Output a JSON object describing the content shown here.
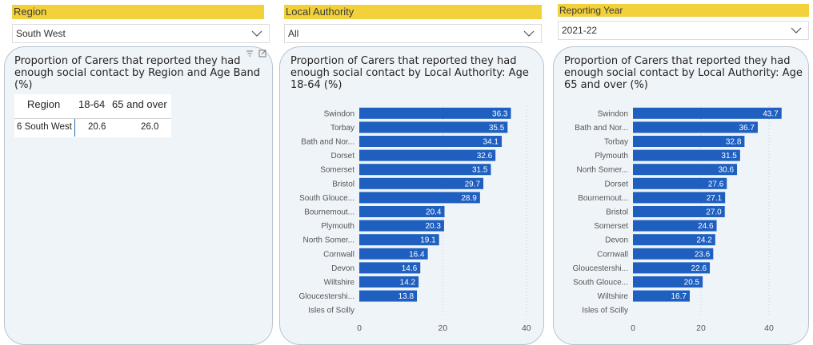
{
  "filters": {
    "region": {
      "title": "Region",
      "value": "South West"
    },
    "local_authority": {
      "title": "Local Authority",
      "value": "All"
    },
    "reporting_year": {
      "title": "Reporting Year",
      "value": "2021-22"
    }
  },
  "region_card": {
    "title_line1": "Proportion of Carers that reported they had",
    "title_line2": "enough social contact by Region and Age Band",
    "title_line3": "(%)",
    "table": {
      "headers": [
        "Region",
        "18-64",
        "65 and over"
      ],
      "rows": [
        [
          "6 South West",
          "20.6",
          "26.0"
        ]
      ]
    }
  },
  "chart_data": [
    {
      "type": "bar",
      "title_line1": "Proportion of Carers that reported they had",
      "title_line2": "enough social contact by Local Authority: Age",
      "title_line3": "18-64 (%)",
      "categories": [
        "Swindon",
        "Torbay",
        "Bath and Nor...",
        "Dorset",
        "Somerset",
        "Bristol",
        "South Glouce...",
        "Bournemout...",
        "Plymouth",
        "North Somer...",
        "Cornwall",
        "Devon",
        "Wiltshire",
        "Gloucestershi...",
        "Isles of Scilly"
      ],
      "values": [
        36.3,
        35.5,
        34.1,
        32.6,
        31.5,
        29.7,
        28.9,
        20.4,
        20.3,
        19.1,
        16.4,
        14.6,
        14.2,
        13.8,
        null
      ],
      "xticks": [
        0,
        20,
        40
      ],
      "xlim": [
        0,
        40
      ],
      "bar_color": "#1F5FBF"
    },
    {
      "type": "bar",
      "title_line1": "Proportion of Carers that reported they had",
      "title_line2": "enough social contact by Local Authority: Age",
      "title_line3": "65 and over (%)",
      "categories": [
        "Swindon",
        "Bath and Nor...",
        "Torbay",
        "Plymouth",
        "North Somer...",
        "Dorset",
        "Bournemout...",
        "Bristol",
        "Somerset",
        "Devon",
        "Cornwall",
        "Gloucestershi...",
        "South Glouce...",
        "Wiltshire",
        "Isles of Scilly"
      ],
      "values": [
        43.7,
        36.7,
        32.8,
        31.5,
        30.6,
        27.6,
        27.1,
        27.0,
        24.6,
        24.2,
        23.6,
        22.6,
        20.5,
        16.7,
        null
      ],
      "xticks": [
        0,
        20,
        40
      ],
      "xlim": [
        0,
        40
      ],
      "bar_color": "#1F5FBF"
    }
  ]
}
